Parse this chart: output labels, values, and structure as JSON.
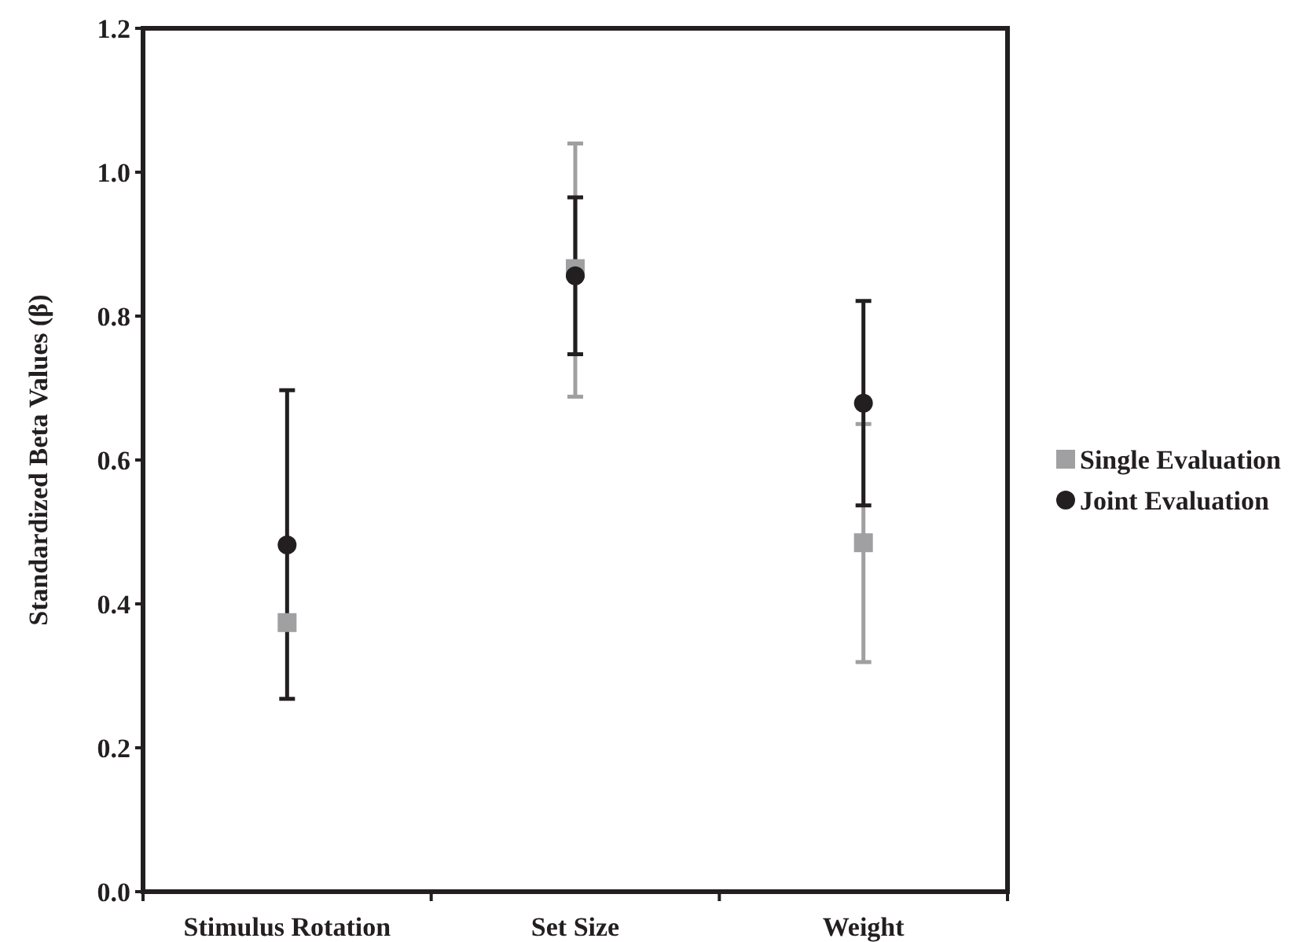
{
  "chart_data": {
    "type": "scatter",
    "ylabel": "Standardized Beta Values (β)",
    "categories": [
      "Stimulus Rotation",
      "Set Size",
      "Weight"
    ],
    "ylim": [
      0,
      1.2
    ],
    "yticks": [
      {
        "value": 0,
        "label": "0.0"
      },
      0.2,
      0.4,
      0.6,
      0.8,
      {
        "value": 1,
        "label": "1.0"
      },
      1.2
    ],
    "legend": "right",
    "grid": false,
    "series": [
      {
        "name": "Single Evaluation",
        "color": "#a0a0a2",
        "marker": "square",
        "values": [
          0.374,
          0.866,
          0.485
        ],
        "errors": [
          null,
          [
            0.688,
            1.04
          ],
          [
            0.319,
            0.65
          ]
        ]
      },
      {
        "name": "Joint Evaluation",
        "color": "#231f20",
        "marker": "circle",
        "values": [
          0.482,
          0.856,
          0.679
        ],
        "errors": [
          [
            0.268,
            0.697
          ],
          [
            0.747,
            0.965
          ],
          [
            0.537,
            0.821
          ]
        ]
      }
    ]
  }
}
